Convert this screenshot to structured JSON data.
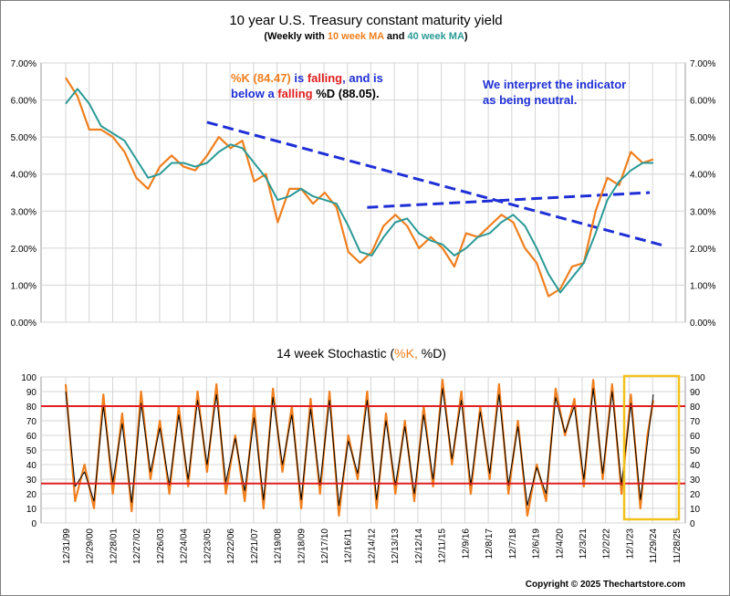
{
  "header": {
    "title": "10 year U.S. Treasury constant maturity yield",
    "subtitle_prefix": "(Weekly with ",
    "subtitle_ma10": "10 week MA",
    "subtitle_and": " and ",
    "subtitle_ma40": "40 week MA",
    "subtitle_suffix": ")"
  },
  "annotations": {
    "k_part1": "%K (84.47)",
    "k_part2": " is ",
    "k_part3": "falling",
    "k_part4": ", and is",
    "k_line2a": "below a ",
    "k_line2b": "falling",
    "k_line2c": " %D (88.05).",
    "neutral_line1": "We interpret the indicator",
    "neutral_line2": "as being neutral."
  },
  "stoch_header": {
    "prefix": "14 week Stochastic (",
    "k": "%K,",
    "d": " %D)"
  },
  "copyright": "Copyright © 2025 Thechartstore.com",
  "colors": {
    "orange": "#f07f1e",
    "teal": "#2a9a96",
    "black": "#000000",
    "red": "#e02020",
    "blue": "#1f2fd6",
    "yellow": "#f2c21b",
    "grid": "#d4d4d4"
  },
  "chart_data": [
    {
      "type": "line",
      "title": "10 year U.S. Treasury constant maturity yield",
      "ylim": [
        0,
        7
      ],
      "yticks": [
        "0.00%",
        "1.00%",
        "2.00%",
        "3.00%",
        "4.00%",
        "5.00%",
        "6.00%",
        "7.00%"
      ],
      "grid": true,
      "series": [
        {
          "name": "10 week MA",
          "color": "#f07f1e",
          "x": [
            2000.0,
            2000.5,
            2001.0,
            2001.5,
            2002.0,
            2002.5,
            2003.0,
            2003.5,
            2004.0,
            2004.5,
            2005.0,
            2005.5,
            2006.0,
            2006.5,
            2007.0,
            2007.5,
            2008.0,
            2008.5,
            2009.0,
            2009.5,
            2010.0,
            2010.5,
            2011.0,
            2011.5,
            2012.0,
            2012.5,
            2013.0,
            2013.5,
            2014.0,
            2014.5,
            2015.0,
            2015.5,
            2016.0,
            2016.5,
            2017.0,
            2017.5,
            2018.0,
            2018.5,
            2019.0,
            2019.5,
            2020.0,
            2020.5,
            2021.0,
            2021.5,
            2022.0,
            2022.5,
            2023.0,
            2023.5,
            2024.0,
            2024.5,
            2024.95
          ],
          "values": [
            6.6,
            6.1,
            5.2,
            5.2,
            5.0,
            4.6,
            3.9,
            3.6,
            4.2,
            4.5,
            4.2,
            4.1,
            4.5,
            5.0,
            4.7,
            4.9,
            3.8,
            4.0,
            2.7,
            3.6,
            3.6,
            3.2,
            3.5,
            3.1,
            1.9,
            1.6,
            1.9,
            2.6,
            2.9,
            2.6,
            2.0,
            2.3,
            2.0,
            1.5,
            2.4,
            2.3,
            2.6,
            2.9,
            2.7,
            2.0,
            1.6,
            0.7,
            0.9,
            1.5,
            1.6,
            3.0,
            3.9,
            3.7,
            4.6,
            4.3,
            4.4
          ]
        },
        {
          "name": "40 week MA",
          "color": "#2a9a96",
          "x": [
            2000.0,
            2000.5,
            2001.0,
            2001.5,
            2002.0,
            2002.5,
            2003.0,
            2003.5,
            2004.0,
            2004.5,
            2005.0,
            2005.5,
            2006.0,
            2006.5,
            2007.0,
            2007.5,
            2008.0,
            2008.5,
            2009.0,
            2009.5,
            2010.0,
            2010.5,
            2011.0,
            2011.5,
            2012.0,
            2012.5,
            2013.0,
            2013.5,
            2014.0,
            2014.5,
            2015.0,
            2015.5,
            2016.0,
            2016.5,
            2017.0,
            2017.5,
            2018.0,
            2018.5,
            2019.0,
            2019.5,
            2020.0,
            2020.5,
            2021.0,
            2021.5,
            2022.0,
            2022.5,
            2023.0,
            2023.5,
            2024.0,
            2024.5,
            2024.95
          ],
          "values": [
            5.9,
            6.3,
            5.9,
            5.3,
            5.1,
            4.9,
            4.4,
            3.9,
            4.0,
            4.3,
            4.3,
            4.2,
            4.3,
            4.6,
            4.8,
            4.7,
            4.3,
            3.9,
            3.3,
            3.4,
            3.6,
            3.4,
            3.3,
            3.2,
            2.6,
            1.9,
            1.8,
            2.3,
            2.7,
            2.8,
            2.4,
            2.2,
            2.1,
            1.8,
            2.0,
            2.3,
            2.4,
            2.7,
            2.9,
            2.6,
            2.0,
            1.3,
            0.8,
            1.2,
            1.6,
            2.4,
            3.3,
            3.8,
            4.1,
            4.3,
            4.3
          ]
        }
      ],
      "trendlines": [
        {
          "x": [
            2006.0,
            2025.5
          ],
          "values": [
            5.4,
            2.05
          ],
          "color": "#1f2fd6",
          "style": "dashed"
        },
        {
          "x": [
            2012.8,
            2024.8
          ],
          "values": [
            3.1,
            3.5
          ],
          "color": "#1f2fd6",
          "style": "dashed"
        }
      ]
    },
    {
      "type": "line",
      "title": "14 week Stochastic (%K, %D)",
      "ylim": [
        0,
        100
      ],
      "yticks": [
        "0",
        "10",
        "20",
        "30",
        "40",
        "50",
        "60",
        "70",
        "80",
        "90",
        "100"
      ],
      "xticks": [
        "12/31/99",
        "12/29/00",
        "12/28/01",
        "12/27/02",
        "12/26/03",
        "12/24/04",
        "12/23/05",
        "12/22/06",
        "12/21/07",
        "12/19/08",
        "12/18/09",
        "12/17/10",
        "12/16/11",
        "12/14/12",
        "12/13/13",
        "12/12/14",
        "12/11/15",
        "12/9/16",
        "12/8/17",
        "12/7/18",
        "12/6/19",
        "12/4/20",
        "12/3/21",
        "12/2/22",
        "12/1/23",
        "11/29/24",
        "11/28/25"
      ],
      "reference_lines": [
        80,
        27
      ],
      "series": [
        {
          "name": "%K",
          "color": "#f07f1e",
          "x": [
            2000.0,
            2000.4,
            2000.8,
            2001.2,
            2001.6,
            2002.0,
            2002.4,
            2002.8,
            2003.2,
            2003.6,
            2004.0,
            2004.4,
            2004.8,
            2005.2,
            2005.6,
            2006.0,
            2006.4,
            2006.8,
            2007.2,
            2007.6,
            2008.0,
            2008.4,
            2008.8,
            2009.2,
            2009.6,
            2010.0,
            2010.4,
            2010.8,
            2011.2,
            2011.6,
            2012.0,
            2012.4,
            2012.8,
            2013.2,
            2013.6,
            2014.0,
            2014.4,
            2014.8,
            2015.2,
            2015.6,
            2016.0,
            2016.4,
            2016.8,
            2017.2,
            2017.6,
            2018.0,
            2018.4,
            2018.8,
            2019.2,
            2019.6,
            2020.0,
            2020.4,
            2020.8,
            2021.2,
            2021.6,
            2022.0,
            2022.4,
            2022.8,
            2023.2,
            2023.6,
            2024.0,
            2024.4,
            2024.7,
            2024.95
          ],
          "values": [
            95,
            15,
            40,
            10,
            88,
            20,
            75,
            8,
            90,
            30,
            70,
            20,
            80,
            25,
            90,
            35,
            95,
            20,
            60,
            15,
            80,
            10,
            92,
            35,
            80,
            10,
            85,
            20,
            90,
            5,
            60,
            30,
            90,
            10,
            75,
            20,
            70,
            15,
            80,
            25,
            98,
            40,
            90,
            20,
            80,
            30,
            95,
            20,
            70,
            5,
            40,
            15,
            92,
            60,
            85,
            25,
            98,
            30,
            95,
            20,
            88,
            10,
            60,
            84
          ]
        },
        {
          "name": "%D",
          "color": "#000000",
          "x": [
            2000.0,
            2000.4,
            2000.8,
            2001.2,
            2001.6,
            2002.0,
            2002.4,
            2002.8,
            2003.2,
            2003.6,
            2004.0,
            2004.4,
            2004.8,
            2005.2,
            2005.6,
            2006.0,
            2006.4,
            2006.8,
            2007.2,
            2007.6,
            2008.0,
            2008.4,
            2008.8,
            2009.2,
            2009.6,
            2010.0,
            2010.4,
            2010.8,
            2011.2,
            2011.6,
            2012.0,
            2012.4,
            2012.8,
            2013.2,
            2013.6,
            2014.0,
            2014.4,
            2014.8,
            2015.2,
            2015.6,
            2016.0,
            2016.4,
            2016.8,
            2017.2,
            2017.6,
            2018.0,
            2018.4,
            2018.8,
            2019.2,
            2019.6,
            2020.0,
            2020.4,
            2020.8,
            2021.2,
            2021.6,
            2022.0,
            2022.4,
            2022.8,
            2023.2,
            2023.6,
            2024.0,
            2024.4,
            2024.7,
            2024.95
          ],
          "values": [
            90,
            25,
            35,
            15,
            80,
            28,
            68,
            14,
            82,
            35,
            65,
            26,
            74,
            30,
            84,
            40,
            88,
            28,
            58,
            22,
            72,
            16,
            86,
            40,
            74,
            16,
            78,
            26,
            84,
            12,
            56,
            34,
            84,
            16,
            70,
            26,
            66,
            20,
            74,
            30,
            92,
            44,
            84,
            26,
            76,
            34,
            88,
            26,
            66,
            12,
            38,
            20,
            86,
            62,
            80,
            30,
            92,
            34,
            90,
            26,
            82,
            16,
            55,
            88
          ]
        }
      ]
    }
  ]
}
